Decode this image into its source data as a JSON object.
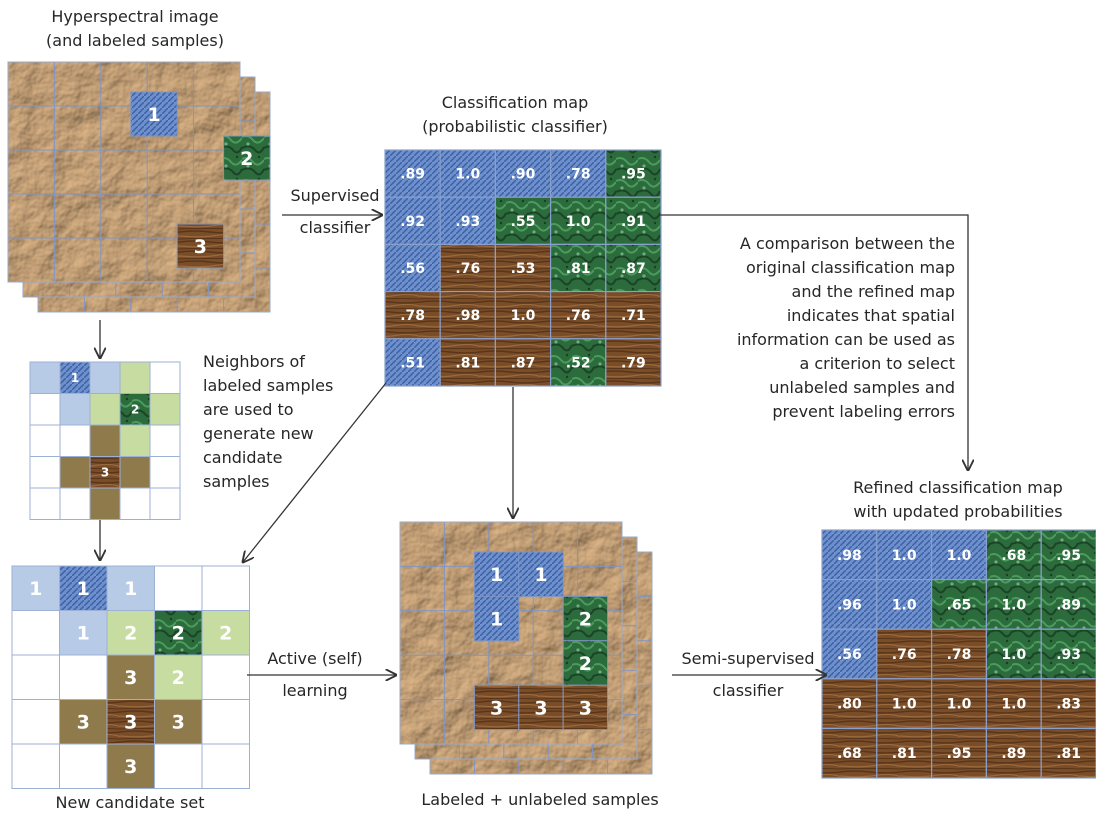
{
  "labels": {
    "hyper_title": [
      "Hyperspectral image",
      "(and labeled samples)"
    ],
    "class_map_title": [
      "Classification map",
      "(probabilistic classifier)"
    ],
    "supervised": [
      "Supervised",
      "classifier"
    ],
    "neighbors": [
      "Neighbors of",
      "labeled samples",
      "are used to",
      "generate new",
      "candidate",
      "samples"
    ],
    "comparison": [
      "A comparison between the",
      "original classification map",
      "and the refined map",
      "indicates that spatial",
      "information can be used as",
      "a criterion to select",
      "unlabeled samples and",
      "prevent labeling errors"
    ],
    "refined_title": [
      "Refined classification map",
      "with updated probabilities"
    ],
    "active": [
      "Active (self)",
      "learning"
    ],
    "semi": [
      "Semi-supervised",
      "classifier"
    ],
    "new_candidate": "New candidate set",
    "labeled_unlabeled": "Labeled + unlabeled samples"
  },
  "classification_map": {
    "values": [
      [
        ".89",
        "1.0",
        ".90",
        ".78",
        ".95"
      ],
      [
        ".92",
        ".93",
        ".55",
        "1.0",
        ".91"
      ],
      [
        ".56",
        ".76",
        ".53",
        ".81",
        ".87"
      ],
      [
        ".78",
        ".98",
        "1.0",
        ".76",
        ".71"
      ],
      [
        ".51",
        ".81",
        ".87",
        ".52",
        ".79"
      ]
    ],
    "classes": [
      [
        1,
        1,
        1,
        1,
        2
      ],
      [
        1,
        1,
        2,
        2,
        2
      ],
      [
        1,
        3,
        3,
        2,
        2
      ],
      [
        3,
        3,
        3,
        3,
        3
      ],
      [
        1,
        3,
        3,
        2,
        3
      ]
    ]
  },
  "refined_map": {
    "values": [
      [
        ".98",
        "1.0",
        "1.0",
        ".68",
        ".95"
      ],
      [
        ".96",
        "1.0",
        ".65",
        "1.0",
        ".89"
      ],
      [
        ".56",
        ".76",
        ".78",
        "1.0",
        ".93"
      ],
      [
        ".80",
        "1.0",
        "1.0",
        "1.0",
        ".83"
      ],
      [
        ".68",
        ".81",
        ".95",
        ".89",
        ".81"
      ]
    ],
    "classes": [
      [
        1,
        1,
        1,
        2,
        2
      ],
      [
        1,
        1,
        2,
        2,
        2
      ],
      [
        1,
        3,
        3,
        2,
        2
      ],
      [
        3,
        3,
        3,
        3,
        3
      ],
      [
        3,
        3,
        3,
        3,
        3
      ]
    ]
  },
  "hyperspectral_samples": [
    {
      "row": 0,
      "col": 2,
      "label": "1",
      "cls": 1
    },
    {
      "row": 1,
      "col": 4,
      "label": "2",
      "cls": 2
    },
    {
      "row": 3,
      "col": 3,
      "label": "3",
      "cls": 3
    }
  ],
  "neighbors_grid": {
    "cells": [
      {
        "row": 0,
        "col": 0,
        "cls": "n1"
      },
      {
        "row": 0,
        "col": 1,
        "cls": "1",
        "label": "1"
      },
      {
        "row": 0,
        "col": 2,
        "cls": "n1"
      },
      {
        "row": 0,
        "col": 3,
        "cls": "n2"
      },
      {
        "row": 1,
        "col": 1,
        "cls": "n1"
      },
      {
        "row": 1,
        "col": 2,
        "cls": "n2"
      },
      {
        "row": 1,
        "col": 3,
        "cls": "2",
        "label": "2"
      },
      {
        "row": 1,
        "col": 4,
        "cls": "n2"
      },
      {
        "row": 2,
        "col": 2,
        "cls": "n3"
      },
      {
        "row": 2,
        "col": 3,
        "cls": "n2"
      },
      {
        "row": 3,
        "col": 1,
        "cls": "n3"
      },
      {
        "row": 3,
        "col": 2,
        "cls": "3",
        "label": "3"
      },
      {
        "row": 3,
        "col": 3,
        "cls": "n3"
      },
      {
        "row": 4,
        "col": 2,
        "cls": "n3"
      }
    ]
  },
  "candidate_grid": {
    "cells": [
      {
        "row": 0,
        "col": 0,
        "cls": "n1",
        "label": "1"
      },
      {
        "row": 0,
        "col": 1,
        "cls": "1",
        "label": "1"
      },
      {
        "row": 0,
        "col": 2,
        "cls": "n1",
        "label": "1"
      },
      {
        "row": 1,
        "col": 1,
        "cls": "n1",
        "label": "1"
      },
      {
        "row": 1,
        "col": 2,
        "cls": "n2",
        "label": "2"
      },
      {
        "row": 1,
        "col": 3,
        "cls": "2",
        "label": "2"
      },
      {
        "row": 1,
        "col": 4,
        "cls": "n2",
        "label": "2"
      },
      {
        "row": 2,
        "col": 2,
        "cls": "n3",
        "label": "3"
      },
      {
        "row": 2,
        "col": 3,
        "cls": "n2",
        "label": "2"
      },
      {
        "row": 3,
        "col": 1,
        "cls": "n3",
        "label": "3"
      },
      {
        "row": 3,
        "col": 2,
        "cls": "3",
        "label": "3"
      },
      {
        "row": 3,
        "col": 3,
        "cls": "n3",
        "label": "3"
      },
      {
        "row": 4,
        "col": 2,
        "cls": "n3",
        "label": "3"
      }
    ]
  },
  "labeled_samples": [
    {
      "row": 0,
      "col": 1,
      "label": "1",
      "cls": 1
    },
    {
      "row": 0,
      "col": 2,
      "label": "1",
      "cls": 1
    },
    {
      "row": 1,
      "col": 1,
      "label": "1",
      "cls": 1
    },
    {
      "row": 1,
      "col": 2,
      "label": "",
      "cls": 0
    },
    {
      "row": 1,
      "col": 3,
      "label": "2",
      "cls": 2
    },
    {
      "row": 2,
      "col": 3,
      "label": "2",
      "cls": 2
    },
    {
      "row": 3,
      "col": 1,
      "label": "3",
      "cls": 3
    },
    {
      "row": 3,
      "col": 2,
      "label": "3",
      "cls": 3
    },
    {
      "row": 3,
      "col": 3,
      "label": "3",
      "cls": 3
    }
  ],
  "colors": {
    "paper": "#b48a5c",
    "paper_dark": "#8a6236",
    "paper_light": "#d2ad7e",
    "class1": "#5d82c4",
    "class1_light": "#b8cbe6",
    "class2": "#2c6a3a",
    "class2_light": "#c6dca0",
    "class3": "#6e4424",
    "class3_light": "#8f7a4c",
    "grid": "#7f95c4",
    "arrow": "#333333"
  }
}
